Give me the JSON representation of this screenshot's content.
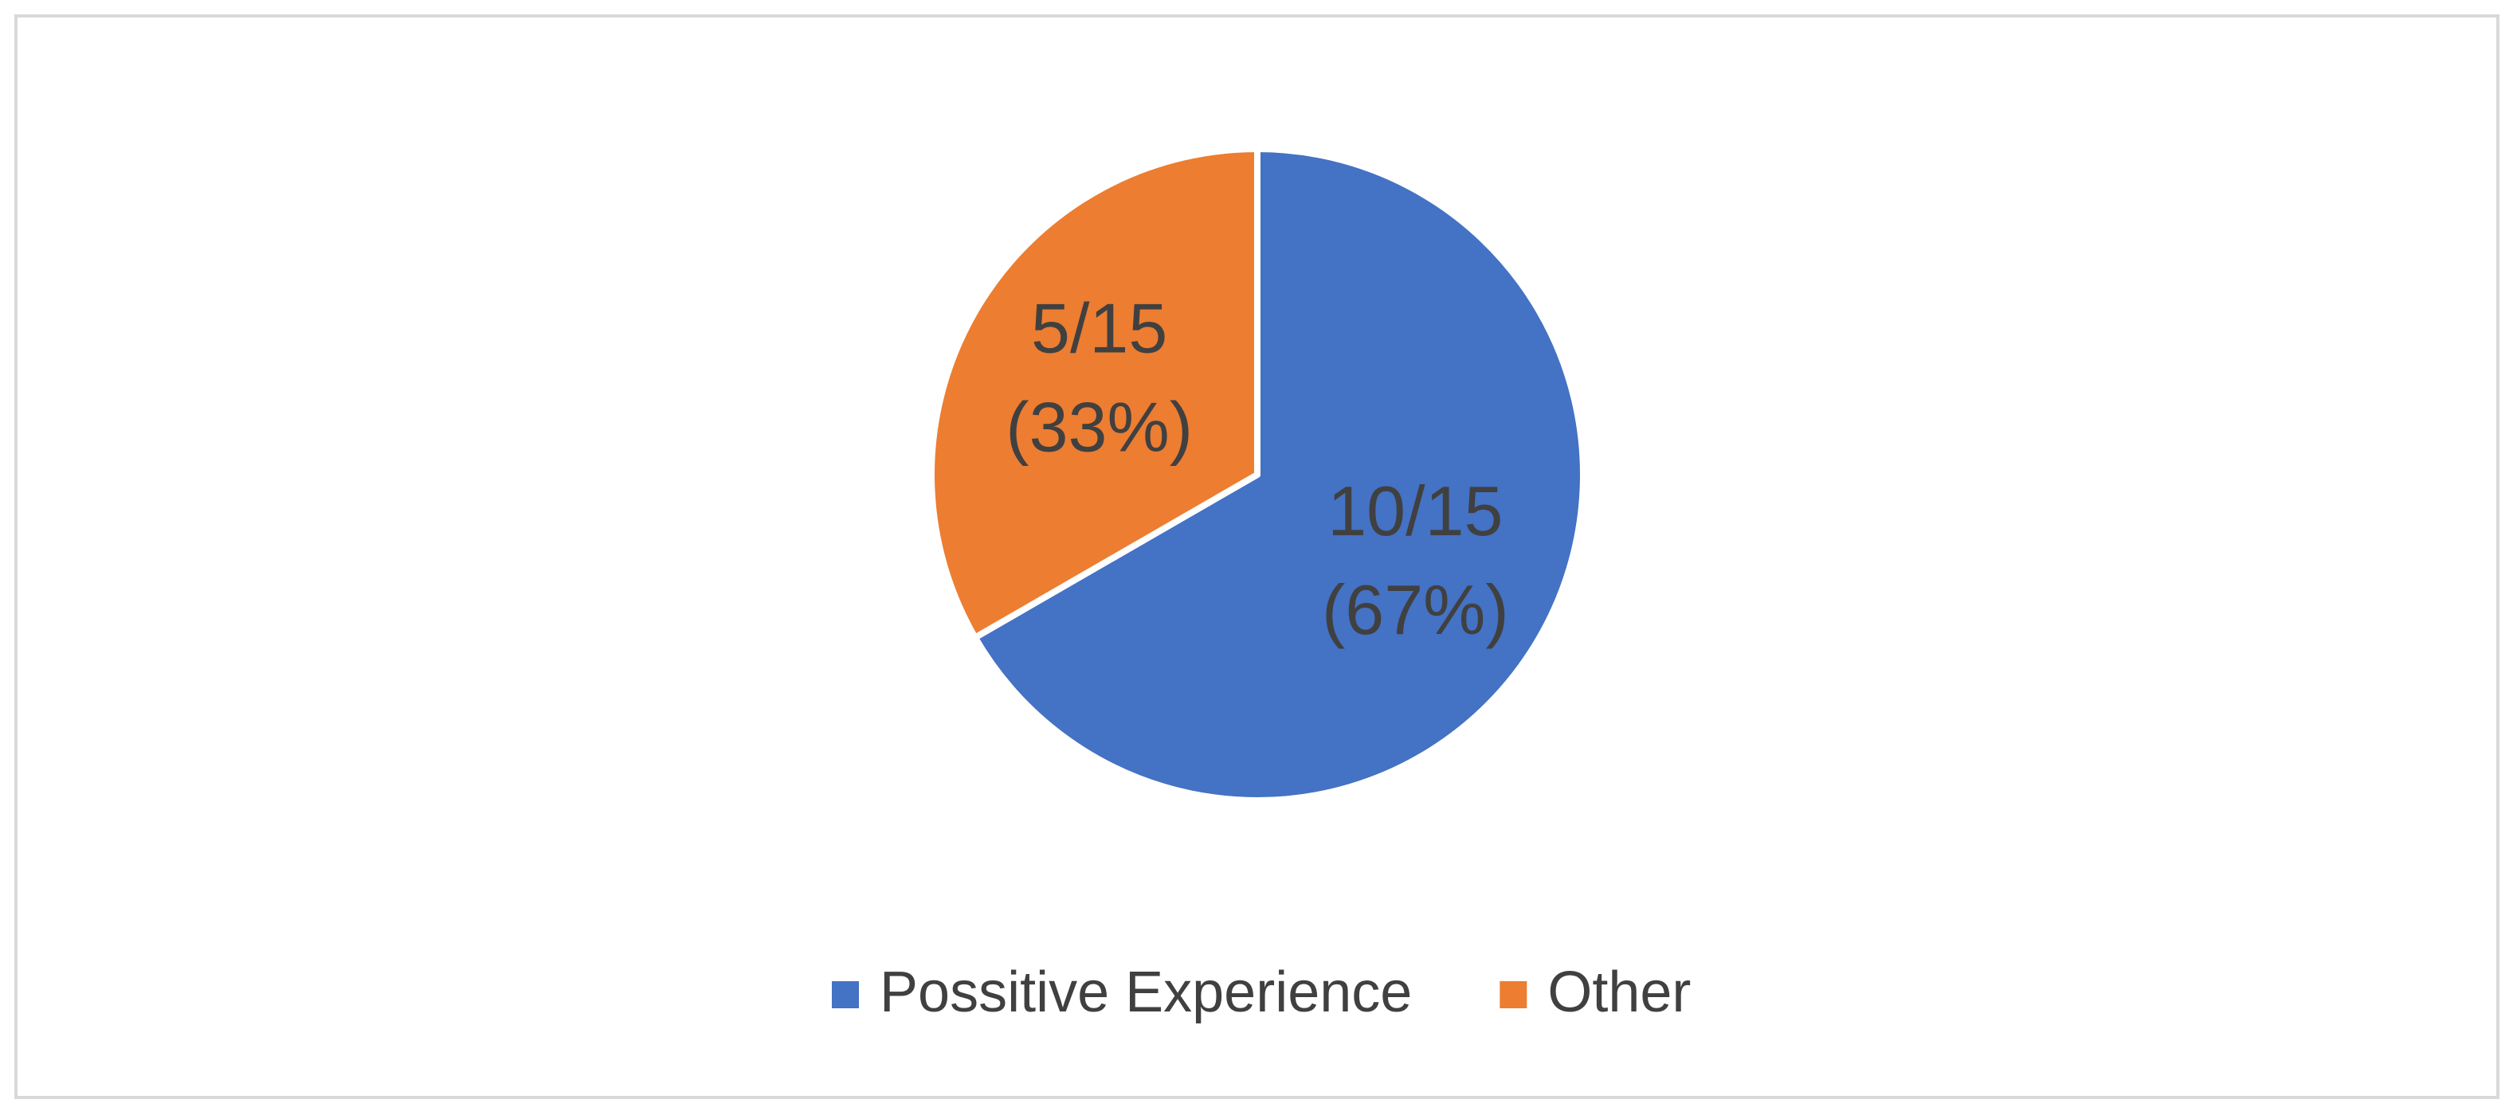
{
  "chart_data": {
    "type": "pie",
    "categories": [
      "Possitive Experience",
      "Other"
    ],
    "values": [
      10,
      5
    ],
    "value_labels": [
      [
        "10/15",
        "(67%)"
      ],
      [
        "5/15",
        "(33%)"
      ]
    ],
    "colors": [
      "#4472c4",
      "#ed7d31"
    ],
    "legend": "bottom"
  }
}
